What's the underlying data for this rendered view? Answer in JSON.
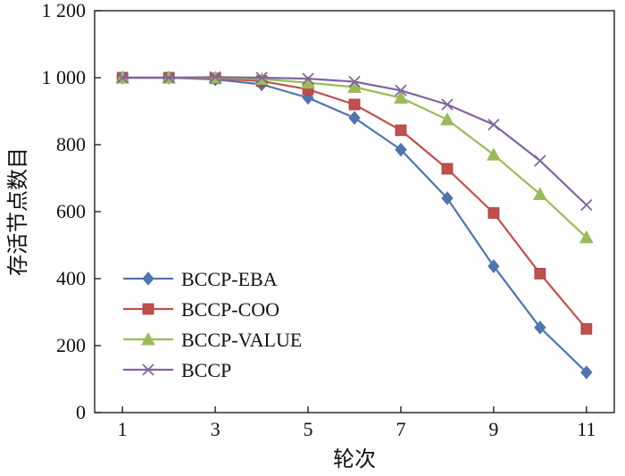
{
  "chart_data": {
    "type": "line",
    "xlabel": "轮次",
    "ylabel": "存活节点数目",
    "xlim": [
      0.4,
      11.6
    ],
    "ylim": [
      0,
      1200
    ],
    "xticks": [
      1,
      3,
      5,
      7,
      9,
      11
    ],
    "xtick_labels": [
      "1",
      "3",
      "5",
      "7",
      "9",
      "11"
    ],
    "yticks": [
      0,
      200,
      400,
      600,
      800,
      1000,
      1200
    ],
    "ytick_labels": [
      "0",
      "200",
      "400",
      "600",
      "800",
      "1 000",
      "1 200"
    ],
    "x": [
      1,
      2,
      3,
      4,
      5,
      6,
      7,
      8,
      9,
      10,
      11
    ],
    "legend_position": "lower-left",
    "series": [
      {
        "name": "BCCP-EBA",
        "color": "#4f74b0",
        "marker": "diamond",
        "values": [
          1000,
          1000,
          995,
          980,
          940,
          880,
          785,
          640,
          437,
          254,
          120
        ]
      },
      {
        "name": "BCCP-COO",
        "color": "#c0504d",
        "marker": "square",
        "values": [
          1000,
          1000,
          998,
          990,
          965,
          920,
          843,
          728,
          596,
          415,
          250
        ]
      },
      {
        "name": "BCCP-VALUE",
        "color": "#9bbb59",
        "marker": "triangle",
        "values": [
          1000,
          1000,
          1000,
          996,
          985,
          972,
          940,
          875,
          770,
          652,
          523
        ]
      },
      {
        "name": "BCCP",
        "color": "#8064a2",
        "marker": "x",
        "values": [
          1000,
          1000,
          1002,
          1000,
          997,
          988,
          962,
          920,
          860,
          752,
          620
        ]
      }
    ]
  }
}
